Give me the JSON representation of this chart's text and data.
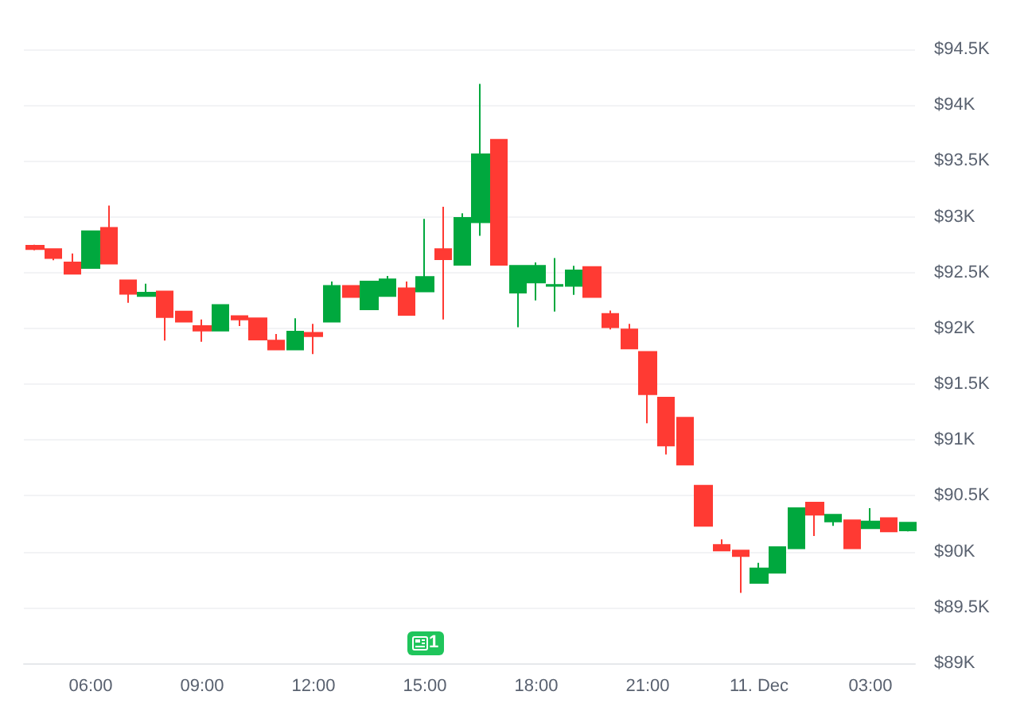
{
  "chart_data": {
    "type": "candlestick",
    "x": [
      "--12-10T04:30",
      "--12-10T05:00",
      "--12-10T05:30",
      "--12-10T06:00",
      "--12-10T06:30",
      "--12-10T07:00",
      "--12-10T07:30",
      "--12-10T08:00",
      "--12-10T08:30",
      "--12-10T09:00",
      "--12-10T09:30",
      "--12-10T10:00",
      "--12-10T10:30",
      "--12-10T11:00",
      "--12-10T11:30",
      "--12-10T12:00",
      "--12-10T12:30",
      "--12-10T13:00",
      "--12-10T13:30",
      "--12-10T14:00",
      "--12-10T14:30",
      "--12-10T15:00",
      "--12-10T15:30",
      "--12-10T16:00",
      "--12-10T16:30",
      "--12-10T17:00",
      "--12-10T17:30",
      "--12-10T18:00",
      "--12-10T18:30",
      "--12-10T19:00",
      "--12-10T19:30",
      "--12-10T20:00",
      "--12-10T20:30",
      "--12-10T21:00",
      "--12-10T21:30",
      "--12-10T22:00",
      "--12-10T22:30",
      "--12-10T23:00",
      "--12-10T23:30",
      "--12-11T00:00",
      "--12-11T00:30",
      "--12-11T01:00",
      "--12-11T01:30",
      "--12-11T02:00",
      "--12-11T02:30",
      "--12-11T03:00",
      "--12-11T03:30",
      "--12-11T04:00"
    ],
    "ohlc": [
      [
        92740,
        92750,
        92700,
        92710
      ],
      [
        92710,
        92710,
        92610,
        92630
      ],
      [
        92590,
        92670,
        92490,
        92490
      ],
      [
        92540,
        92870,
        92540,
        92870
      ],
      [
        92900,
        93100,
        92580,
        92580
      ],
      [
        92430,
        92430,
        92230,
        92310
      ],
      [
        92290,
        92400,
        92290,
        92320
      ],
      [
        92330,
        92330,
        91890,
        92100
      ],
      [
        92150,
        92150,
        92060,
        92060
      ],
      [
        92020,
        92080,
        91880,
        91980
      ],
      [
        91980,
        92210,
        91980,
        92210
      ],
      [
        92110,
        92110,
        92020,
        92080
      ],
      [
        92090,
        92090,
        91900,
        91900
      ],
      [
        91890,
        91950,
        91810,
        91810
      ],
      [
        91810,
        92090,
        91810,
        91970
      ],
      [
        91960,
        92040,
        91770,
        91930
      ],
      [
        92060,
        92420,
        92060,
        92380
      ],
      [
        92380,
        92380,
        92280,
        92280
      ],
      [
        92170,
        92420,
        92170,
        92420
      ],
      [
        92290,
        92470,
        92290,
        92440
      ],
      [
        92360,
        92420,
        92120,
        92120
      ],
      [
        92330,
        92980,
        92330,
        92460
      ],
      [
        92710,
        93090,
        92080,
        92620
      ],
      [
        92570,
        93030,
        92570,
        92990
      ],
      [
        92950,
        94190,
        92830,
        93560
      ],
      [
        93690,
        93690,
        92570,
        92570
      ],
      [
        92320,
        92560,
        92010,
        92560
      ],
      [
        92410,
        92590,
        92250,
        92560
      ],
      [
        92380,
        92630,
        92150,
        92390
      ],
      [
        92380,
        92560,
        92300,
        92520
      ],
      [
        92550,
        92550,
        92280,
        92280
      ],
      [
        92130,
        92160,
        91990,
        92010
      ],
      [
        91990,
        92040,
        91820,
        91820
      ],
      [
        91790,
        91790,
        91150,
        91410
      ],
      [
        91380,
        91380,
        90870,
        90950
      ],
      [
        91200,
        91200,
        90780,
        90780
      ],
      [
        90590,
        90590,
        90230,
        90230
      ],
      [
        90060,
        90110,
        90010,
        90010
      ],
      [
        90010,
        90010,
        89630,
        89960
      ],
      [
        89720,
        89900,
        89720,
        89850
      ],
      [
        89810,
        90040,
        89810,
        90040
      ],
      [
        90030,
        90390,
        90030,
        90390
      ],
      [
        90440,
        90440,
        90140,
        90330
      ],
      [
        90270,
        90330,
        90230,
        90330
      ],
      [
        90280,
        90280,
        90030,
        90030
      ],
      [
        90210,
        90390,
        90210,
        90270
      ],
      [
        90300,
        90300,
        90180,
        90180
      ],
      [
        90190,
        90260,
        90180,
        90260
      ]
    ],
    "colors": [
      "#ff3a33",
      "#ff3a33",
      "#ff3a33",
      "#00a83e",
      "#ff3a33",
      "#ff3a33",
      "#00a83e",
      "#ff3a33",
      "#ff3a33",
      "#ff3a33",
      "#00a83e",
      "#ff3a33",
      "#ff3a33",
      "#ff3a33",
      "#00a83e",
      "#ff3a33",
      "#00a83e",
      "#ff3a33",
      "#00a83e",
      "#00a83e",
      "#ff3a33",
      "#00a83e",
      "#ff3a33",
      "#00a83e",
      "#00a83e",
      "#ff3a33",
      "#00a83e",
      "#00a83e",
      "#00a83e",
      "#00a83e",
      "#ff3a33",
      "#ff3a33",
      "#ff3a33",
      "#ff3a33",
      "#ff3a33",
      "#ff3a33",
      "#ff3a33",
      "#ff3a33",
      "#ff3a33",
      "#00a83e",
      "#00a83e",
      "#00a83e",
      "#ff3a33",
      "#00a83e",
      "#ff3a33",
      "#00a83e",
      "#ff3a33",
      "#00a83e"
    ],
    "xlim": [
      "--12-10T04:12",
      "--12-11T04:12"
    ],
    "xticks": [
      {
        "value": "--12-10T06:00",
        "label": "06:00"
      },
      {
        "value": "--12-10T09:00",
        "label": "09:00"
      },
      {
        "value": "--12-10T12:00",
        "label": "12:00"
      },
      {
        "value": "--12-10T15:00",
        "label": "15:00"
      },
      {
        "value": "--12-10T18:00",
        "label": "18:00"
      },
      {
        "value": "--12-10T21:00",
        "label": "21:00"
      },
      {
        "value": "--12-11T00:00",
        "label": "11. Dec"
      },
      {
        "value": "--12-11T03:00",
        "label": "03:00"
      }
    ],
    "ylim": [
      89000,
      94500
    ],
    "yticks": [
      {
        "value": 89000,
        "label": "$89K"
      },
      {
        "value": 89500,
        "label": "$89.5K"
      },
      {
        "value": 90000,
        "label": "$90K"
      },
      {
        "value": 90500,
        "label": "$90.5K"
      },
      {
        "value": 91000,
        "label": "$91K"
      },
      {
        "value": 91500,
        "label": "$91.5K"
      },
      {
        "value": 92000,
        "label": "$92K"
      },
      {
        "value": 92500,
        "label": "$92.5K"
      },
      {
        "value": 93000,
        "label": "$93K"
      },
      {
        "value": 93500,
        "label": "$93.5K"
      },
      {
        "value": 94000,
        "label": "$94K"
      },
      {
        "value": 94500,
        "label": "$94.5K"
      }
    ],
    "grid": "y",
    "annotations": [
      {
        "text": "1",
        "x": "--12-10T15:00"
      }
    ]
  }
}
